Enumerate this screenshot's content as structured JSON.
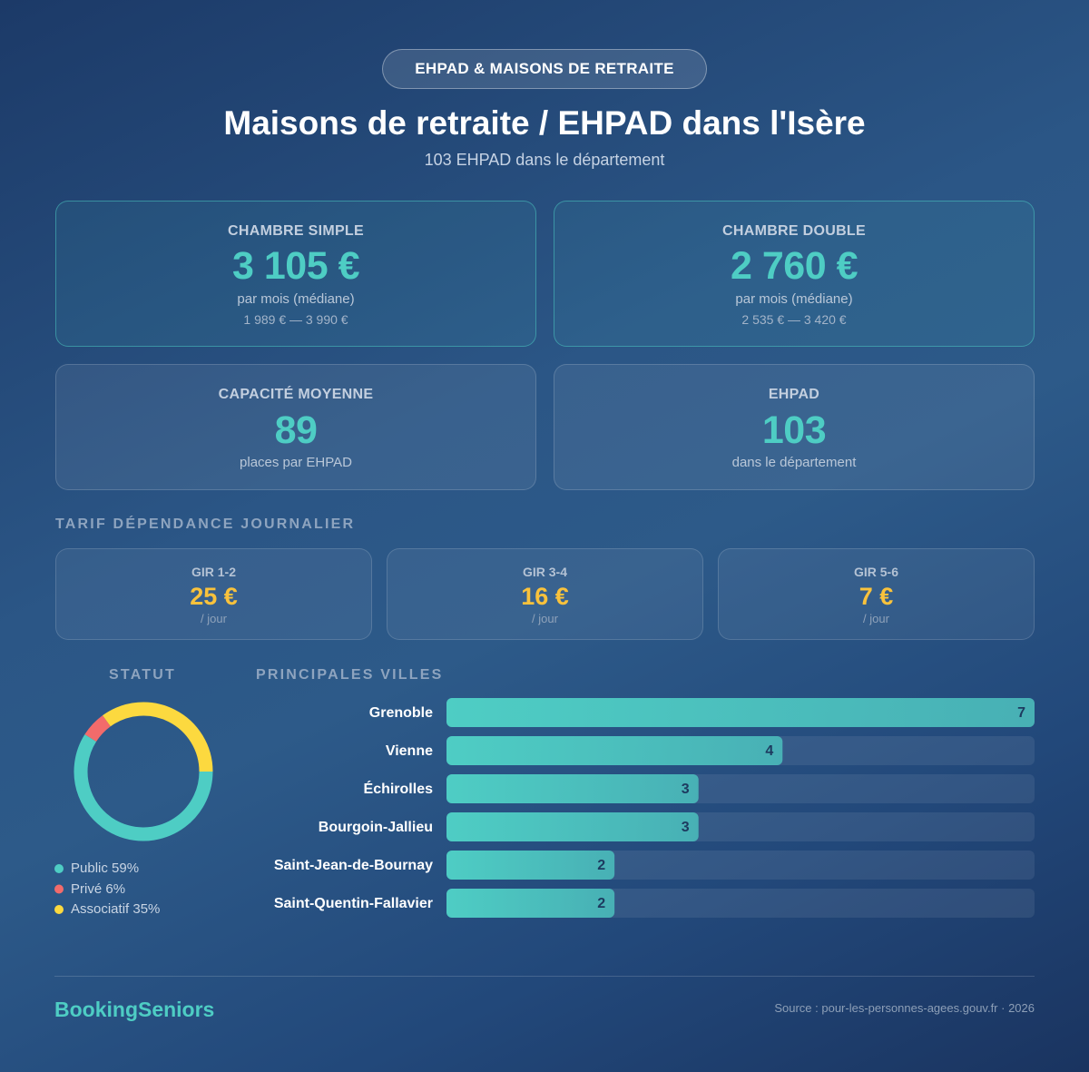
{
  "header": {
    "badge": "EHPAD & MAISONS DE RETRAITE",
    "title": "Maisons de retraite / EHPAD dans l'Isère",
    "subtitle": "103 EHPAD dans le département"
  },
  "price_cards": [
    {
      "label": "CHAMBRE SIMPLE",
      "value": "3 105 €",
      "note": "par mois (médiane)",
      "range": "1 989 € — 3 990 €"
    },
    {
      "label": "CHAMBRE DOUBLE",
      "value": "2 760 €",
      "note": "par mois (médiane)",
      "range": "2 535 € — 3 420 €"
    }
  ],
  "stat_cards": [
    {
      "label": "CAPACITÉ MOYENNE",
      "value": "89",
      "note": "places par EHPAD"
    },
    {
      "label": "EHPAD",
      "value": "103",
      "note": "dans le département"
    }
  ],
  "tariff": {
    "title": "TARIF DÉPENDANCE JOURNALIER",
    "items": [
      {
        "label": "GIR 1-2",
        "value": "25 €",
        "unit": "/ jour"
      },
      {
        "label": "GIR 3-4",
        "value": "16 €",
        "unit": "/ jour"
      },
      {
        "label": "GIR 5-6",
        "value": "7 €",
        "unit": "/ jour"
      }
    ]
  },
  "chart_data": [
    {
      "type": "pie",
      "title": "STATUT",
      "donut": true,
      "categories": [
        "Public",
        "Privé",
        "Associatif"
      ],
      "values": [
        59,
        6,
        35
      ],
      "value_labels": [
        "59%",
        "6%",
        "35%"
      ],
      "colors": [
        "#4ecdc4",
        "#f26b6b",
        "#fcd93f"
      ]
    },
    {
      "type": "bar",
      "orientation": "horizontal",
      "title": "PRINCIPALES VILLES",
      "categories": [
        "Grenoble",
        "Vienne",
        "Échirolles",
        "Bourgoin-Jallieu",
        "Saint-Jean-de-Bournay",
        "Saint-Quentin-Fallavier"
      ],
      "values": [
        7,
        4,
        3,
        3,
        2,
        2
      ],
      "color": "#4ecdc4"
    }
  ],
  "footer": {
    "brand": "BookingSeniors",
    "source": "Source : pour-les-personnes-agees.gouv.fr · 2026"
  }
}
